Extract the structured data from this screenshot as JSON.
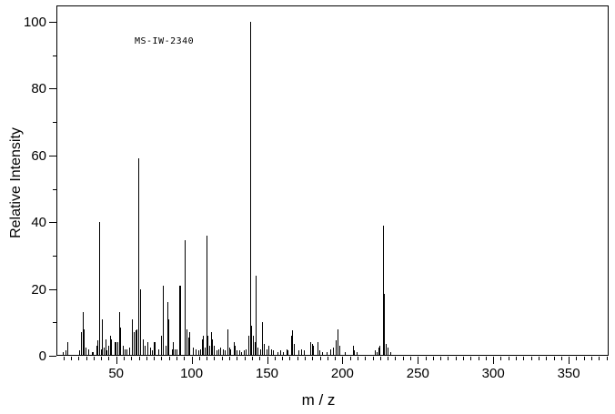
{
  "chart_data": {
    "type": "bar",
    "subtype": "mass-spectrum",
    "annotation": "MS-IW-2340",
    "xlabel": "m / z",
    "ylabel": "Relative Intensity",
    "xlim": [
      10.4,
      376.4
    ],
    "ylim": [
      0,
      105
    ],
    "x_major_ticks": [
      50,
      100,
      150,
      200,
      250,
      300,
      350
    ],
    "y_major_ticks": [
      0,
      20,
      40,
      60,
      80,
      100
    ],
    "x_minor_tick_step": 5,
    "y_minor_tick_step": 10,
    "grid": false,
    "legend": "none",
    "bar_color": "#000000",
    "background_color": "#ffffff",
    "peaks": [
      [
        15,
        1
      ],
      [
        17,
        1.5
      ],
      [
        18,
        4
      ],
      [
        26,
        1.5
      ],
      [
        27,
        7
      ],
      [
        28,
        13
      ],
      [
        29,
        8
      ],
      [
        30,
        2.5
      ],
      [
        32,
        2
      ],
      [
        34,
        1
      ],
      [
        35,
        1
      ],
      [
        37,
        3
      ],
      [
        38,
        4.5
      ],
      [
        39,
        40
      ],
      [
        40,
        2
      ],
      [
        41,
        11
      ],
      [
        42,
        2.5
      ],
      [
        43,
        5
      ],
      [
        44,
        1.5
      ],
      [
        45,
        3
      ],
      [
        46,
        6
      ],
      [
        47,
        5
      ],
      [
        49,
        4
      ],
      [
        50,
        4
      ],
      [
        51,
        4
      ],
      [
        52,
        13
      ],
      [
        53,
        8.5
      ],
      [
        55,
        3
      ],
      [
        56,
        2
      ],
      [
        57,
        2
      ],
      [
        59,
        2.5
      ],
      [
        61,
        11
      ],
      [
        62,
        7
      ],
      [
        63,
        7.5
      ],
      [
        64,
        8
      ],
      [
        65,
        59
      ],
      [
        66,
        20
      ],
      [
        68,
        5
      ],
      [
        69,
        3
      ],
      [
        71,
        4
      ],
      [
        73,
        2.5
      ],
      [
        74,
        1.5
      ],
      [
        75,
        4
      ],
      [
        76,
        4
      ],
      [
        78,
        2
      ],
      [
        80,
        6
      ],
      [
        81,
        21
      ],
      [
        83,
        3
      ],
      [
        84,
        16
      ],
      [
        85,
        11
      ],
      [
        87,
        2
      ],
      [
        88,
        4
      ],
      [
        89,
        2
      ],
      [
        90,
        2
      ],
      [
        92,
        21
      ],
      [
        93,
        21
      ],
      [
        96,
        34.5
      ],
      [
        97,
        8
      ],
      [
        98,
        5.5
      ],
      [
        99,
        7
      ],
      [
        101,
        2.5
      ],
      [
        103,
        2
      ],
      [
        105,
        1.5
      ],
      [
        106,
        2
      ],
      [
        107,
        5
      ],
      [
        108,
        6
      ],
      [
        109,
        2.5
      ],
      [
        110,
        36
      ],
      [
        111,
        6
      ],
      [
        112,
        3
      ],
      [
        113,
        7
      ],
      [
        114,
        5
      ],
      [
        115,
        3
      ],
      [
        117,
        1.5
      ],
      [
        118,
        2
      ],
      [
        119,
        2.5
      ],
      [
        121,
        2
      ],
      [
        122,
        1.5
      ],
      [
        124,
        8
      ],
      [
        125,
        2.5
      ],
      [
        126,
        2
      ],
      [
        128,
        4
      ],
      [
        129,
        3
      ],
      [
        130,
        1.5
      ],
      [
        132,
        1.5
      ],
      [
        133,
        1
      ],
      [
        135,
        1.5
      ],
      [
        136,
        2
      ],
      [
        138,
        6
      ],
      [
        139,
        100
      ],
      [
        140,
        9
      ],
      [
        141,
        6
      ],
      [
        142,
        4
      ],
      [
        143,
        24
      ],
      [
        144,
        2.5
      ],
      [
        146,
        2
      ],
      [
        147,
        10
      ],
      [
        148,
        3.5
      ],
      [
        150,
        2
      ],
      [
        151,
        3
      ],
      [
        153,
        2
      ],
      [
        154,
        1.5
      ],
      [
        157,
        1
      ],
      [
        159,
        1.5
      ],
      [
        161,
        1
      ],
      [
        163,
        2
      ],
      [
        164,
        1.5
      ],
      [
        166,
        6
      ],
      [
        167,
        7.5
      ],
      [
        168,
        3.5
      ],
      [
        171,
        1.5
      ],
      [
        173,
        2
      ],
      [
        175,
        1.5
      ],
      [
        179,
        4
      ],
      [
        180,
        3.5
      ],
      [
        181,
        3
      ],
      [
        184,
        4
      ],
      [
        185,
        1.5
      ],
      [
        187,
        1
      ],
      [
        190,
        1
      ],
      [
        192,
        2
      ],
      [
        194,
        2.5
      ],
      [
        196,
        4.5
      ],
      [
        197,
        8
      ],
      [
        198,
        3
      ],
      [
        202,
        1
      ],
      [
        207,
        3
      ],
      [
        208,
        1.5
      ],
      [
        210,
        1
      ],
      [
        222,
        1.5
      ],
      [
        223,
        1
      ],
      [
        224,
        2.5
      ],
      [
        225,
        3
      ],
      [
        227,
        39
      ],
      [
        228,
        18.5
      ],
      [
        229,
        3.5
      ],
      [
        230,
        2.5
      ],
      [
        232,
        1
      ]
    ]
  }
}
